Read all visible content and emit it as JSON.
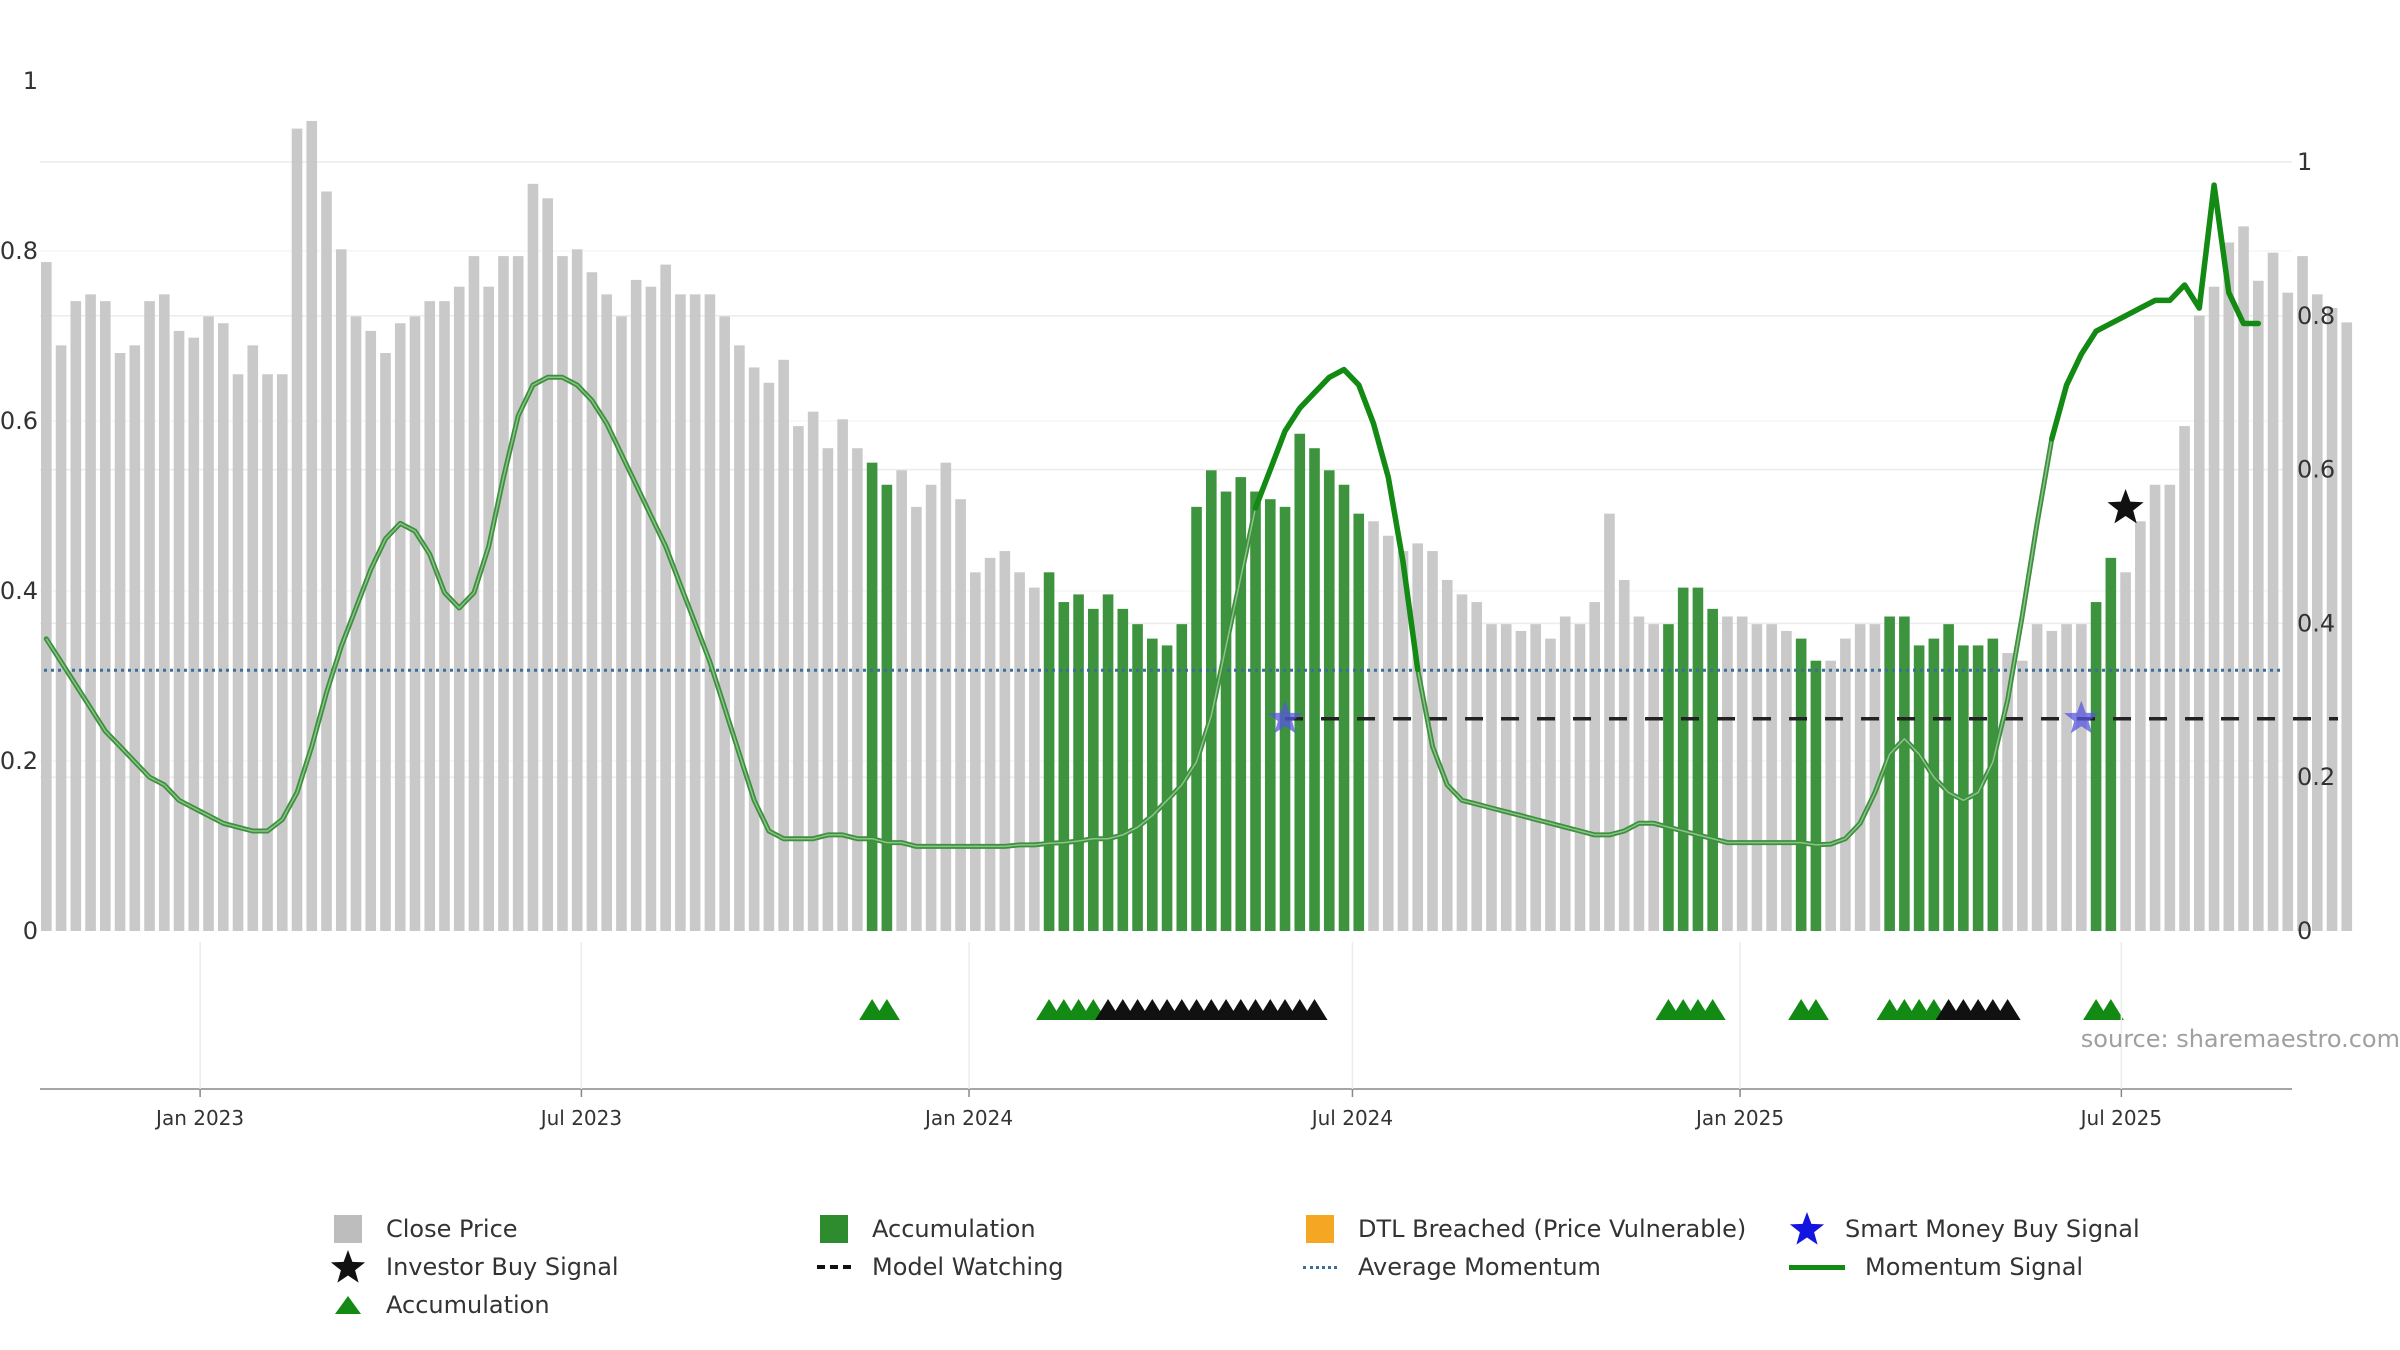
{
  "chart_data": {
    "type": "bar",
    "source": "source: sharemaestro.com",
    "x_ticks": [
      "Jan 2023",
      "Jul 2023",
      "Jan 2024",
      "Jul 2024",
      "Jan 2025",
      "Jul 2025"
    ],
    "x_tick_dates": [
      "2023-01-01",
      "2023-07-01",
      "2024-01-01",
      "2024-07-01",
      "2025-01-01",
      "2025-07-01"
    ],
    "x_range": [
      "2022-10-17",
      "2025-09-20"
    ],
    "left_axis": {
      "ylim": [
        0,
        1.1
      ],
      "ticks": [
        "0",
        "0.2",
        "0.4",
        "0.6",
        "0.8",
        "1"
      ]
    },
    "right_axis": {
      "ylim": [
        0,
        1.1
      ],
      "ticks": [
        "0",
        "0.2",
        "0.4",
        "0.6",
        "0.8",
        "1"
      ]
    },
    "grid": true,
    "bars": {
      "start_date": "2022-10-20",
      "interval_days": 7,
      "values": [
        0.787,
        0.689,
        0.741,
        0.749,
        0.741,
        0.68,
        0.689,
        0.741,
        0.749,
        0.706,
        0.698,
        0.723,
        0.715,
        0.655,
        0.689,
        0.655,
        0.655,
        0.944,
        0.953,
        0.87,
        0.802,
        0.723,
        0.706,
        0.68,
        0.715,
        0.723,
        0.741,
        0.741,
        0.758,
        0.794,
        0.758,
        0.794,
        0.794,
        0.879,
        0.862,
        0.794,
        0.802,
        0.775,
        0.749,
        0.723,
        0.766,
        0.758,
        0.784,
        0.749,
        0.749,
        0.749,
        0.723,
        0.689,
        0.663,
        0.645,
        0.672,
        0.594,
        0.611,
        0.568,
        0.602,
        0.568,
        0.551,
        0.525,
        0.542,
        0.499,
        0.525,
        0.551,
        0.508,
        0.422,
        0.439,
        0.447,
        0.422,
        0.404,
        0.422,
        0.387,
        0.396,
        0.379,
        0.396,
        0.379,
        0.361,
        0.344,
        0.336,
        0.361,
        0.499,
        0.542,
        0.517,
        0.534,
        0.517,
        0.508,
        0.499,
        0.585,
        0.568,
        0.542,
        0.525,
        0.491,
        0.482,
        0.465,
        0.447,
        0.456,
        0.447,
        0.413,
        0.396,
        0.387,
        0.361,
        0.361,
        0.353,
        0.361,
        0.344,
        0.37,
        0.361,
        0.387,
        0.491,
        0.413,
        0.37,
        0.361,
        0.361,
        0.404,
        0.404,
        0.379,
        0.37,
        0.37,
        0.361,
        0.361,
        0.353,
        0.344,
        0.318,
        0.318,
        0.344,
        0.361,
        0.361,
        0.37,
        0.37,
        0.336,
        0.344,
        0.361,
        0.336,
        0.336,
        0.344,
        0.327,
        0.318,
        0.361,
        0.353,
        0.361,
        0.361,
        0.387,
        0.439,
        0.422,
        0.482,
        0.525,
        0.525,
        0.594,
        0.724,
        0.758,
        0.81,
        0.829,
        0.765,
        0.798,
        0.751,
        0.794,
        0.749,
        0.733,
        0.716
      ],
      "accumulation_indices": [
        56,
        57,
        68,
        69,
        70,
        71,
        72,
        73,
        74,
        75,
        76,
        77,
        78,
        79,
        80,
        81,
        82,
        83,
        84,
        85,
        86,
        87,
        88,
        89,
        110,
        111,
        112,
        113,
        119,
        120,
        125,
        126,
        127,
        128,
        129,
        130,
        131,
        132,
        139,
        140
      ]
    },
    "momentum_signal": {
      "axis": "right",
      "start_date": "2022-10-20",
      "interval_days": 7,
      "values": [
        0.38,
        0.35,
        0.32,
        0.29,
        0.26,
        0.24,
        0.22,
        0.2,
        0.19,
        0.17,
        0.16,
        0.15,
        0.14,
        0.135,
        0.13,
        0.13,
        0.145,
        0.18,
        0.24,
        0.31,
        0.37,
        0.42,
        0.47,
        0.51,
        0.53,
        0.52,
        0.49,
        0.44,
        0.42,
        0.44,
        0.5,
        0.59,
        0.67,
        0.71,
        0.72,
        0.72,
        0.71,
        0.69,
        0.66,
        0.62,
        0.58,
        0.54,
        0.5,
        0.45,
        0.4,
        0.35,
        0.29,
        0.23,
        0.17,
        0.13,
        0.12,
        0.12,
        0.12,
        0.125,
        0.125,
        0.12,
        0.12,
        0.115,
        0.115,
        0.11,
        0.11,
        0.11,
        0.11,
        0.11,
        0.11,
        0.11,
        0.112,
        0.112,
        0.114,
        0.115,
        0.117,
        0.12,
        0.12,
        0.125,
        0.135,
        0.15,
        0.17,
        0.19,
        0.22,
        0.28,
        0.37,
        0.46,
        0.55,
        0.6,
        0.65,
        0.68,
        0.7,
        0.72,
        0.73,
        0.71,
        0.66,
        0.59,
        0.48,
        0.34,
        0.24,
        0.19,
        0.17,
        0.165,
        0.16,
        0.155,
        0.15,
        0.145,
        0.14,
        0.135,
        0.13,
        0.125,
        0.125,
        0.13,
        0.14,
        0.14,
        0.135,
        0.13,
        0.125,
        0.12,
        0.115,
        0.115,
        0.115,
        0.115,
        0.115,
        0.115,
        0.112,
        0.113,
        0.12,
        0.14,
        0.18,
        0.23,
        0.25,
        0.23,
        0.2,
        0.18,
        0.17,
        0.18,
        0.22,
        0.3,
        0.41,
        0.53,
        0.64,
        0.71,
        0.75,
        0.78,
        0.79,
        0.8,
        0.81,
        0.82,
        0.82,
        0.84,
        0.81,
        0.97,
        0.83,
        0.79,
        0.79
      ],
      "emphasis_ranges": [
        [
          82,
          93
        ],
        [
          136,
          155
        ]
      ]
    },
    "average_momentum": {
      "axis": "right",
      "value": 0.339
    },
    "model_watching": {
      "axis": "right",
      "value": 0.276,
      "start_index": 84,
      "end_index": 155
    },
    "smart_money_buy_signals": [
      {
        "index": 84,
        "value": 0.276
      },
      {
        "index": 138,
        "value": 0.276
      }
    ],
    "investor_buy_signals": [
      {
        "index": 141,
        "value": 0.55
      }
    ],
    "marker_strip": {
      "green_indices": [
        56,
        57,
        68,
        69,
        70,
        71,
        110,
        111,
        112,
        113,
        119,
        120,
        125,
        126,
        127,
        128,
        139,
        140
      ],
      "black_indices": [
        72,
        73,
        74,
        75,
        76,
        77,
        78,
        79,
        80,
        81,
        82,
        83,
        84,
        85,
        86,
        129,
        130,
        131,
        132,
        133
      ]
    },
    "legend": [
      {
        "label": "Close Price",
        "symbol": "square",
        "color": "#bdbdbd"
      },
      {
        "label": "Accumulation",
        "symbol": "square",
        "color": "#2e8b2e"
      },
      {
        "label": "DTL Breached (Price Vulnerable)",
        "symbol": "square",
        "color": "#f5a623"
      },
      {
        "label": "Smart Money Buy Signal",
        "symbol": "star",
        "color": "#1414e0"
      },
      {
        "label": "Investor Buy Signal",
        "symbol": "star",
        "color": "#111111"
      },
      {
        "label": "Model Watching",
        "symbol": "dash",
        "color": "#111111"
      },
      {
        "label": "Average Momentum",
        "symbol": "dot",
        "color": "#3a6f9a"
      },
      {
        "label": "Momentum Signal",
        "symbol": "line",
        "color": "#138a13"
      },
      {
        "label": "Accumulation",
        "symbol": "triangle",
        "color": "#138a13"
      }
    ]
  }
}
